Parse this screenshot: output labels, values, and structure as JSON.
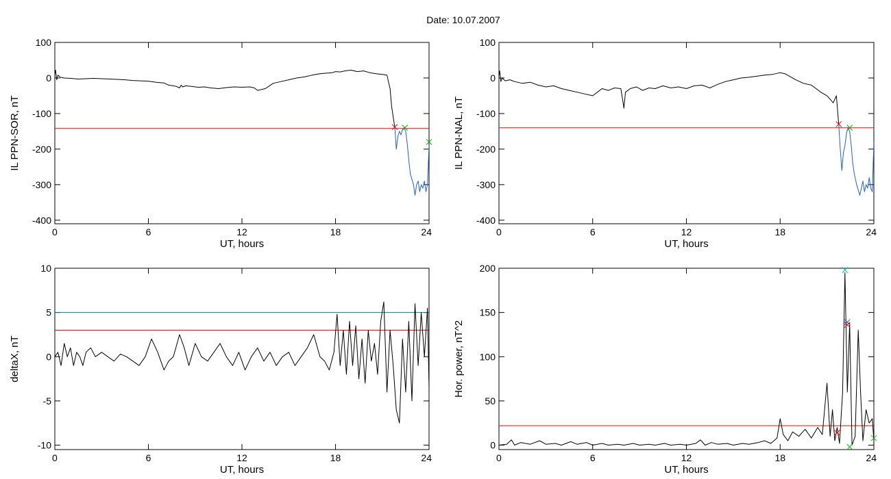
{
  "figure": {
    "title": "Date:  10.07.2007"
  },
  "chart_data": [
    {
      "type": "line",
      "xlabel": "UT, hours",
      "ylabel": "IL PPN-SOR, nT",
      "xlim": [
        0,
        24
      ],
      "ylim": [
        -410,
        100
      ],
      "xticks": [
        0,
        6,
        12,
        18,
        24
      ],
      "yticks": [
        100,
        0,
        -100,
        -200,
        -300,
        -400
      ],
      "hlines": [
        {
          "y": -142,
          "color": "#ff0000"
        }
      ],
      "series": [
        {
          "color": "#000000",
          "x": [
            0,
            0.05,
            0.12,
            0.2,
            0.35,
            0.6,
            1.0,
            1.5,
            2.0,
            2.5,
            3.0,
            3.5,
            4.0,
            4.5,
            5.0,
            5.5,
            6.0,
            6.5,
            7.0,
            7.3,
            7.6,
            7.8,
            8.0,
            8.1,
            8.2,
            8.4,
            8.8,
            9.2,
            9.6,
            10.0,
            10.5,
            11.0,
            11.5,
            12.0,
            12.5,
            12.8,
            13.0,
            13.5,
            14.0,
            14.5,
            15.0,
            15.5,
            16.0,
            16.5,
            17.0,
            17.5,
            17.8,
            18.0,
            18.3,
            18.6,
            19.0,
            19.4,
            19.8,
            20.2,
            20.6,
            21.0,
            21.3,
            21.5,
            21.6,
            21.7,
            21.8
          ],
          "y": [
            10,
            22,
            -5,
            8,
            2,
            0,
            -1,
            -3,
            -2,
            -1,
            -2,
            -3,
            -4,
            -5,
            -7,
            -8,
            -9,
            -12,
            -14,
            -20,
            -22,
            -24,
            -28,
            -20,
            -25,
            -22,
            -24,
            -26,
            -25,
            -28,
            -30,
            -27,
            -25,
            -26,
            -25,
            -28,
            -35,
            -30,
            -15,
            -10,
            -5,
            0,
            3,
            8,
            12,
            14,
            15,
            18,
            17,
            20,
            22,
            18,
            20,
            15,
            12,
            10,
            8,
            -30,
            -80,
            -110,
            -138
          ]
        },
        {
          "color": "#1f5fd6",
          "x": [
            21.8,
            21.9,
            22.0,
            22.1,
            22.2,
            22.3,
            22.4,
            22.5,
            22.6,
            22.7,
            22.8,
            23.0,
            23.1,
            23.2,
            23.3,
            23.4,
            23.5,
            23.6,
            23.7,
            23.8,
            23.9,
            24.0
          ],
          "y": [
            -138,
            -200,
            -165,
            -150,
            -160,
            -145,
            -140,
            -150,
            -185,
            -230,
            -270,
            -300,
            -330,
            -300,
            -290,
            -320,
            -300,
            -310,
            -290,
            -320,
            -300,
            -190
          ]
        }
      ],
      "markers": [
        {
          "x": 21.8,
          "y": -138,
          "color": "#ff0000",
          "symbol": "x"
        },
        {
          "x": 22.45,
          "y": -140,
          "color": "#ff0000",
          "symbol": "x"
        },
        {
          "x": 22.45,
          "y": -140,
          "color": "#00c000",
          "symbol": "x"
        },
        {
          "x": 24.0,
          "y": -180,
          "color": "#00c000",
          "symbol": "x"
        }
      ]
    },
    {
      "type": "line",
      "xlabel": "UT, hours",
      "ylabel": "IL PPN-NAL, nT",
      "xlim": [
        0,
        24
      ],
      "ylim": [
        -410,
        100
      ],
      "xticks": [
        0,
        6,
        12,
        18,
        24
      ],
      "yticks": [
        100,
        0,
        -100,
        -200,
        -300,
        -400
      ],
      "hlines": [
        {
          "y": -140,
          "color": "#ff0000"
        }
      ],
      "series": [
        {
          "color": "#000000",
          "x": [
            0,
            0.05,
            0.12,
            0.2,
            0.4,
            0.7,
            1.0,
            1.5,
            2.0,
            2.5,
            3.0,
            3.5,
            4.0,
            4.5,
            5.0,
            5.5,
            6.0,
            6.3,
            6.6,
            7.0,
            7.4,
            7.8,
            7.95,
            8.0,
            8.1,
            8.4,
            8.8,
            9.2,
            9.6,
            10.0,
            10.5,
            11.0,
            11.5,
            12.0,
            12.5,
            13.0,
            13.5,
            14.0,
            14.5,
            15.0,
            15.5,
            16.0,
            16.5,
            17.0,
            17.5,
            18.0,
            18.3,
            18.6,
            19.0,
            19.5,
            20.0,
            20.3,
            20.6,
            21.0,
            21.2,
            21.4,
            21.6,
            21.75
          ],
          "y": [
            5,
            20,
            -10,
            0,
            -8,
            -5,
            -10,
            -15,
            -12,
            -20,
            -25,
            -22,
            -30,
            -35,
            -40,
            -45,
            -50,
            -40,
            -30,
            -35,
            -28,
            -30,
            -70,
            -85,
            -40,
            -30,
            -25,
            -35,
            -28,
            -30,
            -22,
            -28,
            -25,
            -30,
            -22,
            -20,
            -28,
            -18,
            -10,
            -5,
            0,
            2,
            5,
            8,
            10,
            15,
            12,
            5,
            -5,
            -15,
            -20,
            -30,
            -40,
            -50,
            -60,
            -70,
            -50,
            -130
          ]
        },
        {
          "color": "#1f5fd6",
          "x": [
            21.75,
            21.85,
            21.95,
            22.05,
            22.15,
            22.25,
            22.35,
            22.45,
            22.55,
            22.65,
            22.75,
            22.9,
            23.1,
            23.2,
            23.3,
            23.4,
            23.5,
            23.6,
            23.7,
            23.8,
            23.9,
            24.0
          ],
          "y": [
            -130,
            -200,
            -260,
            -210,
            -190,
            -155,
            -140,
            -150,
            -190,
            -240,
            -270,
            -300,
            -330,
            -310,
            -290,
            -320,
            -300,
            -310,
            -280,
            -310,
            -320,
            -180
          ]
        }
      ],
      "markers": [
        {
          "x": 21.75,
          "y": -130,
          "color": "#ff0000",
          "symbol": "x"
        },
        {
          "x": 22.45,
          "y": -140,
          "color": "#ff0000",
          "symbol": "x"
        },
        {
          "x": 22.45,
          "y": -140,
          "color": "#00c000",
          "symbol": "x"
        }
      ]
    },
    {
      "type": "line",
      "xlabel": "UT, hours",
      "ylabel": "deltaX, nT",
      "xlim": [
        0,
        24
      ],
      "ylim": [
        -10.5,
        10
      ],
      "xticks": [
        0,
        6,
        12,
        18,
        24
      ],
      "yticks": [
        10,
        5,
        0,
        -5,
        -10
      ],
      "hlines": [
        {
          "y": 5,
          "color": "#008080"
        },
        {
          "y": 3,
          "color": "#ff0000"
        }
      ],
      "series": [
        {
          "color": "#000000",
          "x": [
            0,
            0.2,
            0.4,
            0.6,
            0.8,
            1.0,
            1.2,
            1.4,
            1.6,
            1.8,
            2.0,
            2.3,
            2.6,
            3.0,
            3.4,
            3.8,
            4.2,
            4.6,
            5.0,
            5.4,
            5.8,
            6.2,
            6.6,
            7.0,
            7.3,
            7.6,
            8.0,
            8.3,
            8.6,
            9.0,
            9.4,
            9.8,
            10.2,
            10.6,
            11.0,
            11.4,
            11.8,
            12.2,
            12.6,
            13.0,
            13.4,
            13.8,
            14.2,
            14.6,
            15.0,
            15.4,
            15.8,
            16.2,
            16.6,
            17.0,
            17.3,
            17.6,
            17.9,
            18.1,
            18.3,
            18.5,
            18.7,
            18.9,
            19.1,
            19.3,
            19.5,
            19.7,
            19.9,
            20.1,
            20.3,
            20.5,
            20.7,
            20.9,
            21.1,
            21.3,
            21.5,
            21.7,
            21.9,
            22.1,
            22.3,
            22.5,
            22.7,
            22.9,
            23.1,
            23.3,
            23.5,
            23.7,
            23.9,
            24.0
          ],
          "y": [
            0,
            0.5,
            -1,
            1.5,
            0,
            1,
            -1,
            0.5,
            0,
            -1,
            0.5,
            1,
            0,
            0.5,
            0,
            -0.5,
            0.3,
            0,
            -0.5,
            -1,
            0,
            2,
            0.5,
            -1.5,
            -0.5,
            0,
            2.5,
            1,
            -1,
            1.5,
            0,
            -0.5,
            0.5,
            1.5,
            0,
            -1,
            0.5,
            -1.5,
            0,
            1,
            -0.5,
            0.5,
            -1,
            0,
            0.5,
            -1,
            0,
            1,
            2.5,
            0,
            -0.5,
            -1.5,
            0.5,
            4.8,
            -1,
            3,
            -2,
            4,
            -1,
            3.5,
            -2.5,
            2,
            -3,
            3,
            -0.5,
            1.5,
            -2,
            4,
            6.2,
            -4,
            3,
            -1,
            -6,
            -7.5,
            2,
            -4,
            4,
            -5,
            6,
            -1,
            5,
            0,
            5.5,
            -3.5
          ]
        }
      ],
      "markers": []
    },
    {
      "type": "line",
      "xlabel": "UT, hours",
      "ylabel": "Hor. power, nT^2",
      "xlim": [
        0,
        24
      ],
      "ylim": [
        -5,
        200
      ],
      "xticks": [
        0,
        6,
        12,
        18,
        24
      ],
      "yticks": [
        200,
        150,
        100,
        50,
        0
      ],
      "hlines": [
        {
          "y": 22,
          "color": "#ff0000"
        }
      ],
      "series": [
        {
          "color": "#000000",
          "x": [
            0,
            0.5,
            0.8,
            1.0,
            1.4,
            2.0,
            2.6,
            3.0,
            3.6,
            4.0,
            4.6,
            5.0,
            5.6,
            6.0,
            6.6,
            7.0,
            7.6,
            8.0,
            8.6,
            9.0,
            9.6,
            10.0,
            10.6,
            11.0,
            11.6,
            12.0,
            12.6,
            12.9,
            13.2,
            13.6,
            14.0,
            14.6,
            15.0,
            15.6,
            16.0,
            16.6,
            17.0,
            17.4,
            17.8,
            18.0,
            18.2,
            18.5,
            18.8,
            19.2,
            19.6,
            20.0,
            20.4,
            20.7,
            21.0,
            21.2,
            21.35,
            21.5,
            21.65,
            21.8,
            22.0,
            22.15,
            22.3,
            22.45,
            22.6,
            22.8,
            23.0,
            23.15,
            23.3,
            23.5,
            23.7,
            23.9,
            24.0
          ],
          "y": [
            0,
            1,
            6,
            0,
            3,
            1,
            5,
            1,
            2,
            0,
            4,
            1,
            3,
            0,
            2,
            0,
            1,
            0,
            2,
            0,
            1,
            0,
            2,
            0,
            1,
            0,
            2,
            6,
            0,
            3,
            1,
            2,
            0,
            2,
            1,
            3,
            5,
            2,
            8,
            30,
            12,
            5,
            15,
            10,
            18,
            8,
            20,
            12,
            70,
            10,
            40,
            5,
            20,
            2,
            60,
            195,
            60,
            138,
            0,
            10,
            130,
            60,
            5,
            40,
            25,
            30,
            5
          ]
        }
      ],
      "markers": [
        {
          "x": 21.65,
          "y": 14,
          "color": "#ff0000",
          "symbol": "x"
        },
        {
          "x": 22.15,
          "y": 198,
          "color": "#00c0c0",
          "symbol": "x"
        },
        {
          "x": 22.3,
          "y": 139,
          "color": "#1f5fd6",
          "symbol": "x"
        },
        {
          "x": 22.3,
          "y": 136,
          "color": "#ff0000",
          "symbol": "x"
        },
        {
          "x": 22.45,
          "y": -2,
          "color": "#00c000",
          "symbol": "x"
        },
        {
          "x": 24.0,
          "y": 8,
          "color": "#00c000",
          "symbol": "x"
        }
      ]
    }
  ]
}
